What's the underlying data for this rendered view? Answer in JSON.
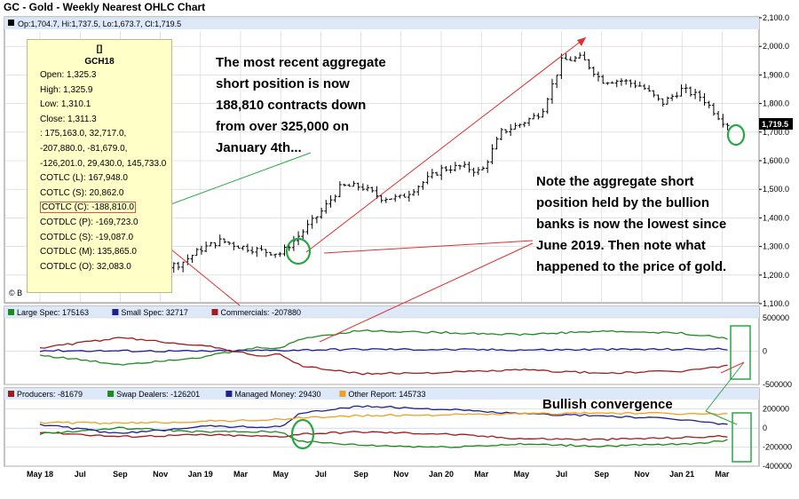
{
  "title": "GC - Gold - Weekly Nearest OHLC Chart",
  "ohlc_readout": "Op:1,704.7, Hi:1,737.5, Lo:1,673.7, Cl:1,719.5",
  "watermark": "© B",
  "colors": {
    "price": "#000000",
    "grid": "#d0d0d0",
    "large_spec": "#1f8a1f",
    "small_spec": "#20208f",
    "commercials": "#a31b1b",
    "producers": "#a31b1b",
    "swap_dealers": "#1f8a1f",
    "managed_money": "#20208f",
    "other_report": "#f0a020",
    "annotation_red": "#e03030",
    "annotation_green": "#28a745",
    "tooltip_bg": "#ffffc8"
  },
  "tooltip": {
    "header1": "[]",
    "header2": "GCH18",
    "lines": [
      "Open: 1,325.3",
      "High: 1,325.9",
      "Low: 1,310.1",
      "Close: 1,311.3",
      ": 175,163.0, 32,717.0,",
      "-207,880.0, -81,679.0,",
      "-126,201.0, 29,430.0, 145,733.0",
      "COTLC (L): 167,948.0",
      "COTLC (S): 20,862.0",
      "COTLC (C): -188,810.0",
      "COTDLC (P): -169,723.0",
      "COTDLC (S): -19,087.0",
      "COTDLC (M): 135,865.0",
      "COTDLC (O): 32,083.0"
    ]
  },
  "notes": {
    "note1": [
      "The most recent aggregate",
      "short position is now",
      "188,810 contracts down",
      "from over 325,000 on",
      "January 4th..."
    ],
    "note2": [
      "Note the aggregate short",
      "position held by the bullion",
      "banks is now the lowest since",
      "June 2019.   Then note what",
      "happened to the price of gold."
    ],
    "note3": "Bullish convergence"
  },
  "chart_data": [
    {
      "type": "ohlc",
      "y_ticks": [
        "2,100.0",
        "2,000.0",
        "1,900.0",
        "1,800.0",
        "1,700.0",
        "1,600.0",
        "1,500.0",
        "1,400.0",
        "1,300.0",
        "1,200.0",
        "1,100.0"
      ],
      "ylim": [
        1100,
        2100
      ],
      "last_price_label": "1,719.5",
      "x_ticks": [
        "May 18",
        "Jul",
        "Sep",
        "Nov",
        "Jan 19",
        "Mar",
        "May",
        "Jul",
        "Sep",
        "Nov",
        "Jan 20",
        "Mar",
        "May",
        "Jul",
        "Sep",
        "Nov",
        "Jan 21",
        "Mar"
      ],
      "x_tick_months": [
        0,
        2,
        4,
        6,
        8,
        10,
        12,
        14,
        16,
        18,
        20,
        22,
        24,
        26,
        28,
        30,
        32,
        34
      ],
      "price_path": [
        [
          0,
          1295
        ],
        [
          1,
          1265
        ],
        [
          2,
          1230
        ],
        [
          3,
          1195
        ],
        [
          4,
          1200
        ],
        [
          5,
          1222
        ],
        [
          6,
          1225
        ],
        [
          7,
          1240
        ],
        [
          8,
          1290
        ],
        [
          9,
          1320
        ],
        [
          10,
          1300
        ],
        [
          11,
          1285
        ],
        [
          12,
          1275
        ],
        [
          13,
          1345
        ],
        [
          14,
          1420
        ],
        [
          15,
          1510
        ],
        [
          16,
          1510
        ],
        [
          17,
          1470
        ],
        [
          18,
          1470
        ],
        [
          19,
          1520
        ],
        [
          20,
          1570
        ],
        [
          21,
          1580
        ],
        [
          22,
          1560
        ],
        [
          23,
          1700
        ],
        [
          24,
          1730
        ],
        [
          25,
          1770
        ],
        [
          26,
          1950
        ],
        [
          27,
          1960
        ],
        [
          28,
          1880
        ],
        [
          29,
          1880
        ],
        [
          30,
          1860
        ],
        [
          31,
          1800
        ],
        [
          32,
          1850
        ],
        [
          33,
          1820
        ],
        [
          34,
          1740
        ],
        [
          34.5,
          1719.5
        ]
      ]
    },
    {
      "type": "line",
      "y_ticks": [
        "500000",
        "0",
        "-500000"
      ],
      "ylim": [
        -500000,
        500000
      ],
      "series": [
        {
          "name": "Large Spec: 175163",
          "color_key": "large_spec",
          "x": [
            0,
            4,
            8,
            11,
            12,
            13,
            16,
            20,
            24,
            28,
            32,
            34,
            34.5
          ],
          "values": [
            -60000,
            -200000,
            -90000,
            60000,
            40000,
            190000,
            310000,
            280000,
            250000,
            300000,
            270000,
            200000,
            175163
          ]
        },
        {
          "name": "Small Spec: 32717",
          "color_key": "small_spec",
          "x": [
            0,
            8,
            16,
            24,
            34.5
          ],
          "values": [
            10000,
            0,
            30000,
            20000,
            32717
          ]
        },
        {
          "name": "Commercials: -207880",
          "color_key": "commercials",
          "x": [
            0,
            4,
            8,
            11,
            12,
            13,
            16,
            20,
            24,
            28,
            32,
            34,
            34.5
          ],
          "values": [
            50000,
            200000,
            90000,
            -70000,
            -50000,
            -220000,
            -340000,
            -320000,
            -280000,
            -330000,
            -300000,
            -230000,
            -207880
          ]
        }
      ]
    },
    {
      "type": "line",
      "y_ticks": [
        "200000",
        "0",
        "-200000",
        "-400000"
      ],
      "ylim": [
        -400000,
        300000
      ],
      "series": [
        {
          "name": "Producers: -81679",
          "color_key": "producers",
          "x": [
            0,
            4,
            8,
            12,
            13,
            16,
            20,
            24,
            28,
            32,
            34.5
          ],
          "values": [
            -40000,
            -90000,
            -70000,
            -90000,
            -60000,
            -40000,
            -60000,
            -110000,
            -120000,
            -100000,
            -81679
          ]
        },
        {
          "name": "Swap Dealers: -126201",
          "color_key": "swap_dealers",
          "x": [
            0,
            4,
            8,
            12,
            13,
            16,
            20,
            24,
            28,
            32,
            34.5
          ],
          "values": [
            -60000,
            0,
            -40000,
            -40000,
            -140000,
            -180000,
            -200000,
            -170000,
            -190000,
            -170000,
            -126201
          ]
        },
        {
          "name": "Managed Money: 29430",
          "color_key": "managed_money",
          "x": [
            0,
            4,
            8,
            12,
            13,
            16,
            20,
            24,
            28,
            32,
            34.5
          ],
          "values": [
            40000,
            -60000,
            20000,
            10000,
            160000,
            230000,
            200000,
            150000,
            130000,
            90000,
            29430
          ]
        },
        {
          "name": "Other Report: 145733",
          "color_key": "other_report",
          "x": [
            0,
            4,
            8,
            12,
            13,
            16,
            20,
            24,
            28,
            32,
            34.5
          ],
          "values": [
            60000,
            50000,
            70000,
            90000,
            110000,
            130000,
            140000,
            150000,
            160000,
            150000,
            145733
          ]
        }
      ]
    }
  ]
}
